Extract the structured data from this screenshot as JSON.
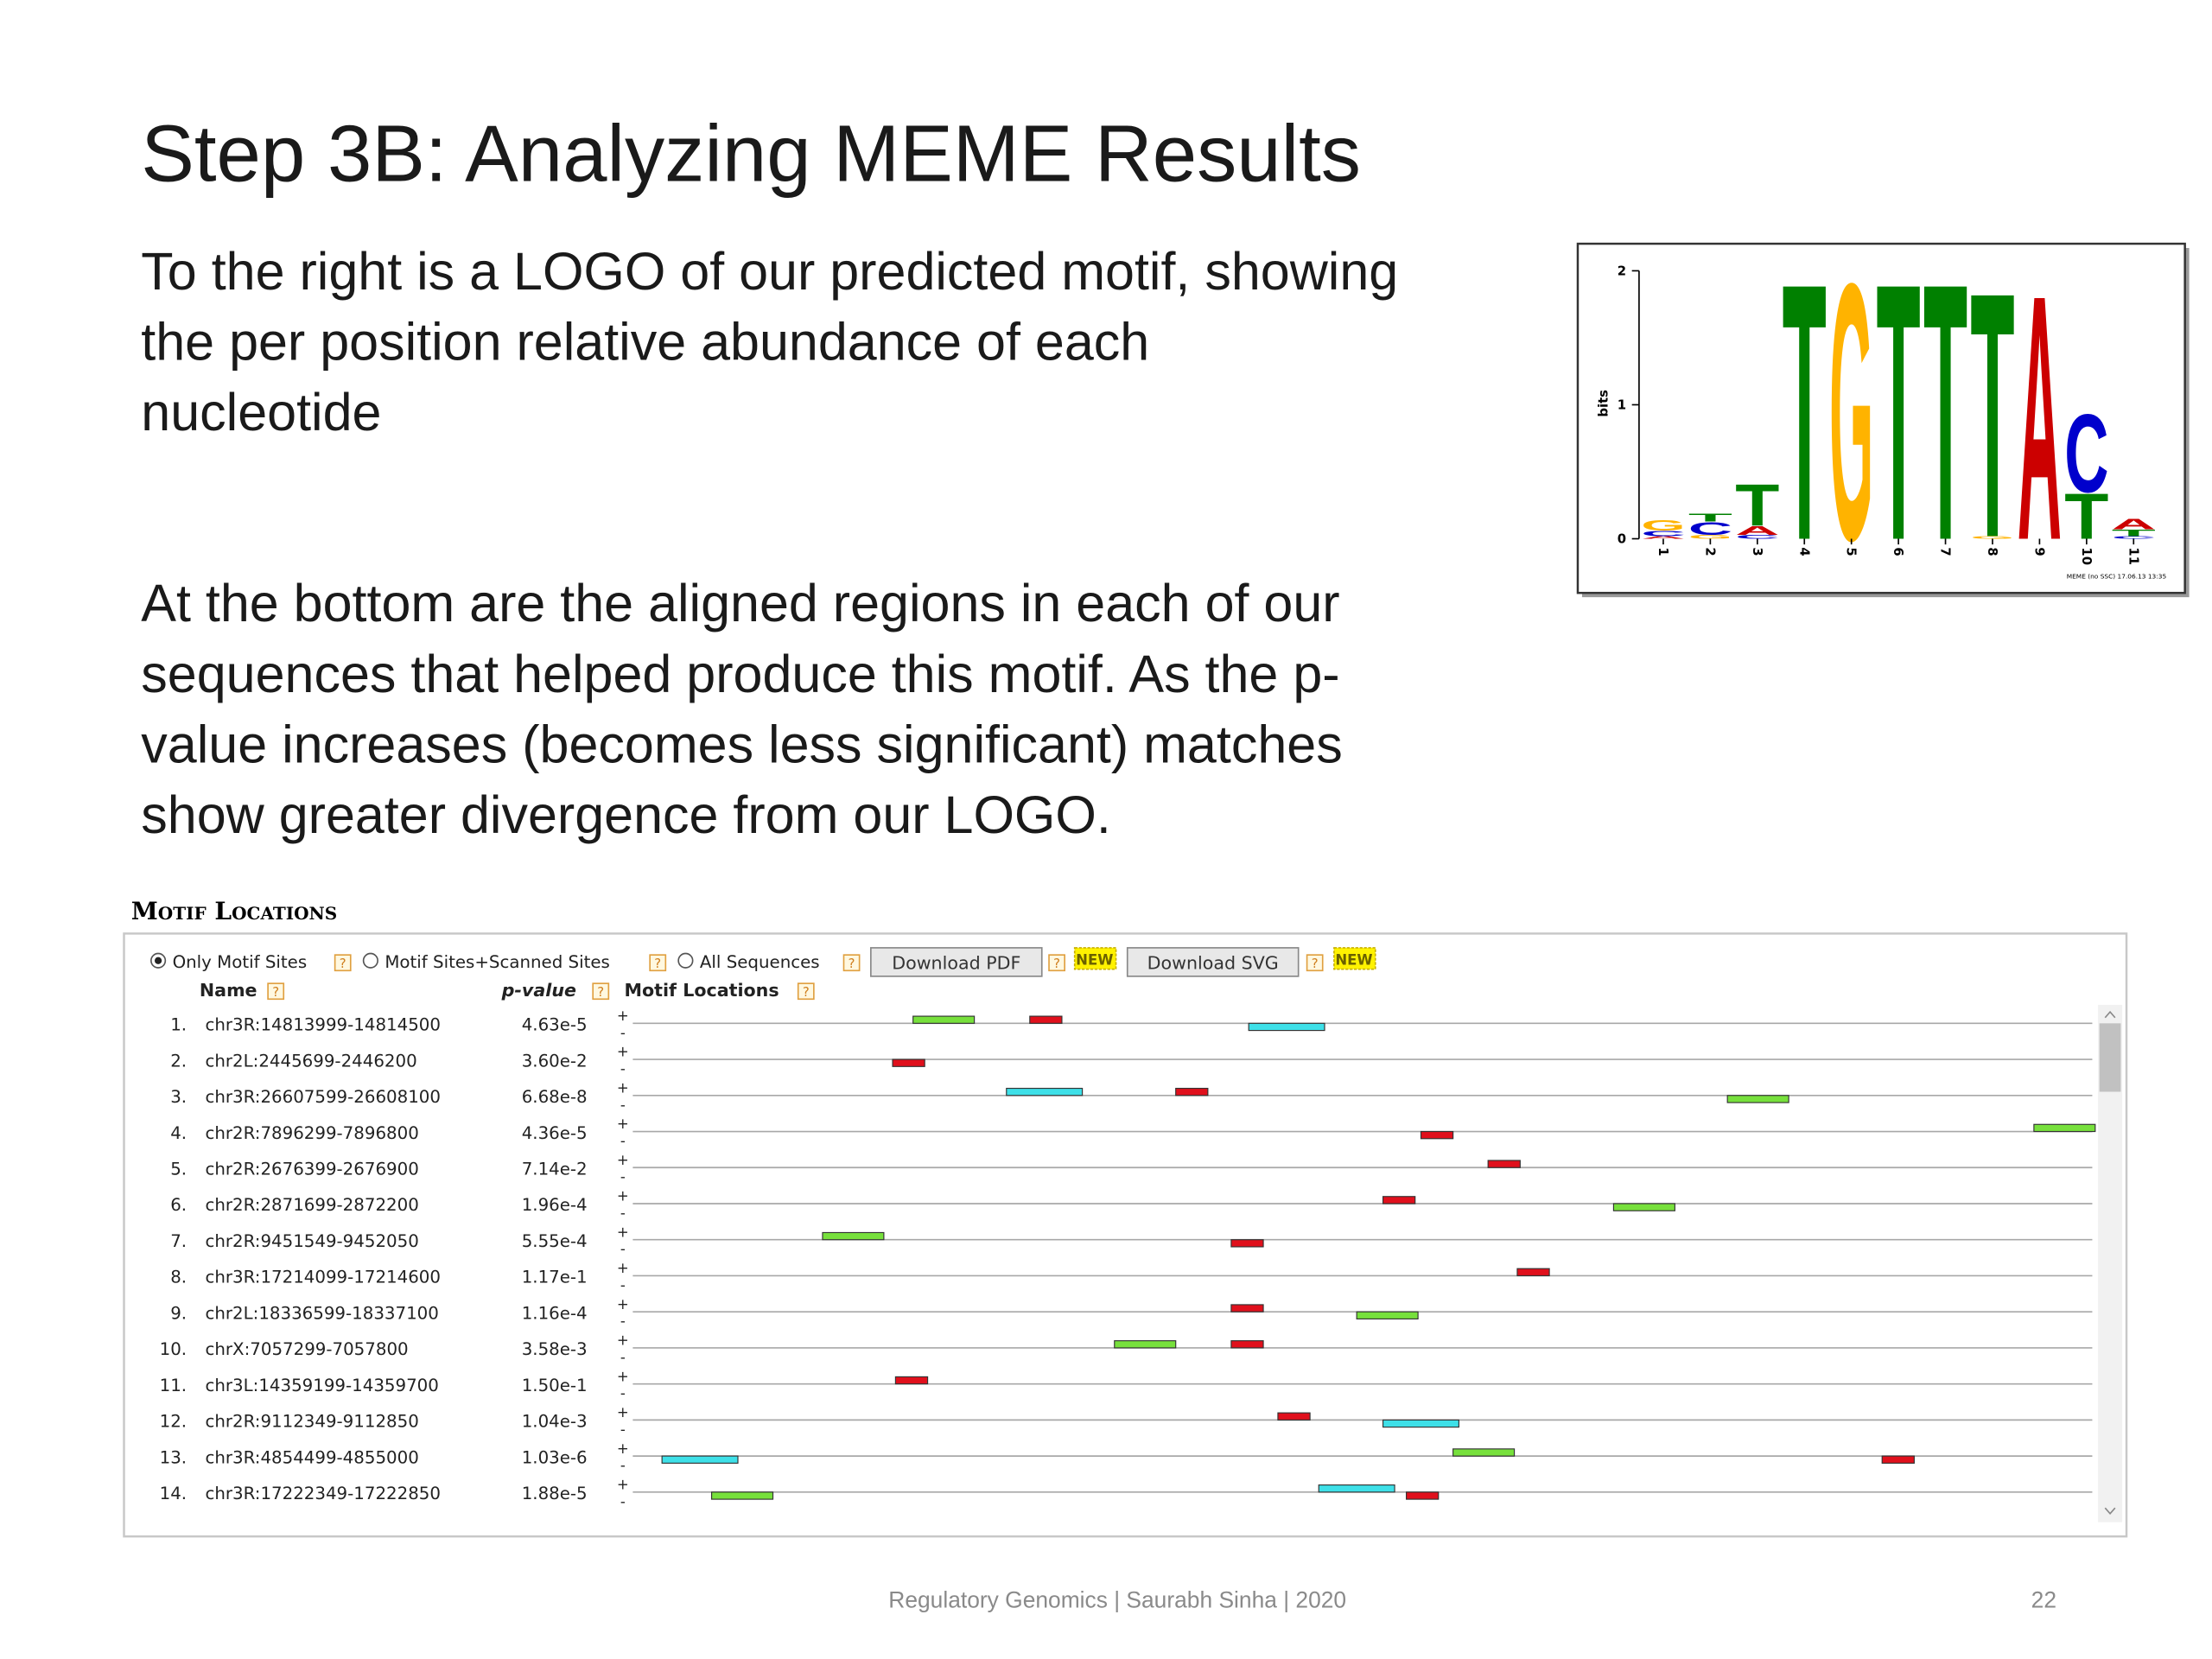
{
  "slide": {
    "title": "Step 3B: Analyzing MEME Results",
    "paragraphs": [
      [
        "To the right is a LOGO of our predicted motif, showing",
        "the per position relative abundance of each",
        "nucleotide"
      ],
      [
        "At the bottom are the aligned regions in each of our",
        "sequences that helped produce this motif. As the p-",
        "value increases (becomes less significant) matches",
        "show greater divergence from our LOGO."
      ]
    ],
    "footer": "Regulatory Genomics  |  Saurabh Sinha | 2020",
    "page_number": "22"
  },
  "logo": {
    "ylabel": "bits",
    "ylim": [
      0,
      2
    ],
    "yticks": [
      0,
      1,
      2
    ],
    "positions": [
      1,
      2,
      3,
      4,
      5,
      6,
      7,
      8,
      9,
      10,
      11
    ],
    "colors": {
      "A": "#cc0000",
      "C": "#0000cc",
      "G": "#ffb300",
      "T": "#008000"
    },
    "columns": [
      [
        {
          "letter": "A",
          "bits": 0.02
        },
        {
          "letter": "C",
          "bits": 0.04
        },
        {
          "letter": "G",
          "bits": 0.08
        }
      ],
      [
        {
          "letter": "G",
          "bits": 0.03
        },
        {
          "letter": "C",
          "bits": 0.1
        },
        {
          "letter": "T",
          "bits": 0.06
        }
      ],
      [
        {
          "letter": "C",
          "bits": 0.03
        },
        {
          "letter": "A",
          "bits": 0.07
        },
        {
          "letter": "T",
          "bits": 0.32
        }
      ],
      [
        {
          "letter": "T",
          "bits": 1.97
        }
      ],
      [
        {
          "letter": "G",
          "bits": 1.97
        }
      ],
      [
        {
          "letter": "T",
          "bits": 1.97
        }
      ],
      [
        {
          "letter": "T",
          "bits": 1.97
        }
      ],
      [
        {
          "letter": "G",
          "bits": 0.02
        },
        {
          "letter": "T",
          "bits": 1.88
        }
      ],
      [
        {
          "letter": "A",
          "bits": 1.88
        }
      ],
      [
        {
          "letter": "T",
          "bits": 0.35
        },
        {
          "letter": "C",
          "bits": 0.6
        }
      ],
      [
        {
          "letter": "C",
          "bits": 0.02
        },
        {
          "letter": "T",
          "bits": 0.05
        },
        {
          "letter": "A",
          "bits": 0.08
        }
      ]
    ],
    "caption": "MEME (no SSC) 17.06.13 13:35"
  },
  "motif_locations": {
    "heading": "Motif Locations",
    "options": [
      "Only Motif Sites",
      "Motif Sites+Scanned Sites",
      "All Sequences"
    ],
    "selected_option": 0,
    "buttons": [
      "Download PDF",
      "Download SVG"
    ],
    "badge": "NEW",
    "help": "?",
    "columns": [
      "Name",
      "p-value",
      "Motif Locations"
    ],
    "strands": [
      "+",
      "-"
    ],
    "sequence_length": 500,
    "motifs": [
      {
        "color": "#77e03c",
        "width": 21
      },
      {
        "color": "#e0101c",
        "width": 11
      },
      {
        "color": "#3ee0e8",
        "width": 26
      }
    ],
    "rows": [
      {
        "index": "1.",
        "name": "chr3R:14813999-14814500",
        "p_value": "4.63e-5",
        "sites": [
          {
            "motif": 0,
            "start": 96,
            "strand": "+"
          },
          {
            "motif": 1,
            "start": 136,
            "strand": "+"
          },
          {
            "motif": 2,
            "start": 211,
            "strand": "-"
          }
        ]
      },
      {
        "index": "2.",
        "name": "chr2L:2445699-2446200",
        "p_value": "3.60e-2",
        "sites": [
          {
            "motif": 1,
            "start": 89,
            "strand": "-"
          }
        ]
      },
      {
        "index": "3.",
        "name": "chr3R:26607599-26608100",
        "p_value": "6.68e-8",
        "sites": [
          {
            "motif": 2,
            "start": 128,
            "strand": "+"
          },
          {
            "motif": 1,
            "start": 186,
            "strand": "+"
          },
          {
            "motif": 0,
            "start": 375,
            "strand": "-"
          }
        ]
      },
      {
        "index": "4.",
        "name": "chr2R:7896299-7896800",
        "p_value": "4.36e-5",
        "sites": [
          {
            "motif": 1,
            "start": 270,
            "strand": "-"
          },
          {
            "motif": 0,
            "start": 480,
            "strand": "+"
          }
        ]
      },
      {
        "index": "5.",
        "name": "chr2R:2676399-2676900",
        "p_value": "7.14e-2",
        "sites": [
          {
            "motif": 1,
            "start": 293,
            "strand": "+"
          }
        ]
      },
      {
        "index": "6.",
        "name": "chr2R:2871699-2872200",
        "p_value": "1.96e-4",
        "sites": [
          {
            "motif": 1,
            "start": 257,
            "strand": "+"
          },
          {
            "motif": 0,
            "start": 336,
            "strand": "-"
          }
        ]
      },
      {
        "index": "7.",
        "name": "chr2R:9451549-9452050",
        "p_value": "5.55e-4",
        "sites": [
          {
            "motif": 0,
            "start": 65,
            "strand": "+"
          },
          {
            "motif": 1,
            "start": 205,
            "strand": "-"
          }
        ]
      },
      {
        "index": "8.",
        "name": "chr3R:17214099-17214600",
        "p_value": "1.17e-1",
        "sites": [
          {
            "motif": 1,
            "start": 303,
            "strand": "+"
          }
        ]
      },
      {
        "index": "9.",
        "name": "chr2L:18336599-18337100",
        "p_value": "1.16e-4",
        "sites": [
          {
            "motif": 1,
            "start": 205,
            "strand": "+"
          },
          {
            "motif": 0,
            "start": 248,
            "strand": "-"
          }
        ]
      },
      {
        "index": "10.",
        "name": "chrX:7057299-7057800",
        "p_value": "3.58e-3",
        "sites": [
          {
            "motif": 0,
            "start": 165,
            "strand": "+"
          },
          {
            "motif": 1,
            "start": 205,
            "strand": "+"
          }
        ]
      },
      {
        "index": "11.",
        "name": "chr3L:14359199-14359700",
        "p_value": "1.50e-1",
        "sites": [
          {
            "motif": 1,
            "start": 90,
            "strand": "+"
          }
        ]
      },
      {
        "index": "12.",
        "name": "chr2R:9112349-9112850",
        "p_value": "1.04e-3",
        "sites": [
          {
            "motif": 1,
            "start": 221,
            "strand": "+"
          },
          {
            "motif": 2,
            "start": 257,
            "strand": "-"
          }
        ]
      },
      {
        "index": "13.",
        "name": "chr3R:4854499-4855000",
        "p_value": "1.03e-6",
        "sites": [
          {
            "motif": 2,
            "start": 10,
            "strand": "-"
          },
          {
            "motif": 0,
            "start": 281,
            "strand": "+"
          },
          {
            "motif": 1,
            "start": 428,
            "strand": "-"
          }
        ]
      },
      {
        "index": "14.",
        "name": "chr3R:17222349-17222850",
        "p_value": "1.88e-5",
        "sites": [
          {
            "motif": 0,
            "start": 27,
            "strand": "-"
          },
          {
            "motif": 2,
            "start": 235,
            "strand": "+"
          },
          {
            "motif": 1,
            "start": 265,
            "strand": "-"
          }
        ]
      }
    ]
  }
}
